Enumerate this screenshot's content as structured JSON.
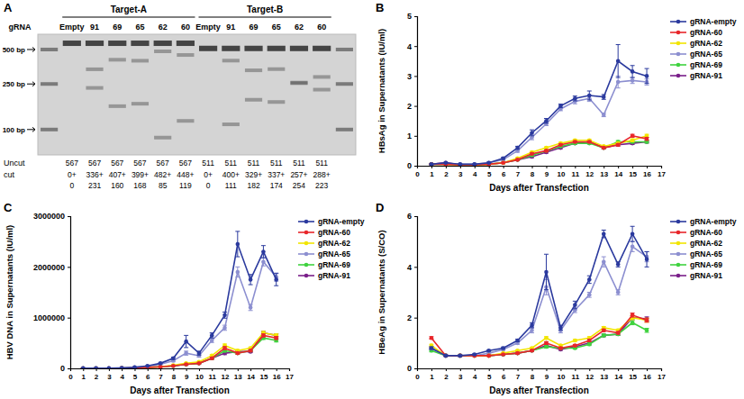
{
  "chart_data": [
    {
      "type": "gel",
      "title": "A",
      "lane_title": "gRNA",
      "row_labels": [
        "Uncut",
        "cut"
      ],
      "log": "y",
      "ylim": [
        60,
        680
      ],
      "yticks": [
        {
          "value": 500,
          "label": "500 bp"
        },
        {
          "value": 250,
          "label": "250 bp"
        },
        {
          "value": 100,
          "label": "100 bp"
        }
      ],
      "targets": [
        {
          "name": "Target-A",
          "lanes": [
            "Empty",
            "91",
            "69",
            "65",
            "62",
            "60"
          ],
          "uncut": [
            567,
            567,
            567,
            567,
            567,
            567
          ],
          "cut_a": [
            0,
            336,
            407,
            399,
            482,
            448
          ],
          "cut_a_labels": [
            "0+",
            "336+",
            "407+",
            "399+",
            "482+",
            "448+"
          ],
          "cut_b": [
            0,
            231,
            160,
            168,
            85,
            119
          ]
        },
        {
          "name": "Target-B",
          "lanes": [
            "Empty",
            "91",
            "69",
            "65",
            "62",
            "60"
          ],
          "uncut": [
            511,
            511,
            511,
            511,
            511,
            511
          ],
          "cut_a": [
            0,
            400,
            329,
            337,
            257,
            288
          ],
          "cut_a_labels": [
            "0+",
            "400+",
            "329+",
            "337+",
            "257+",
            "288+"
          ],
          "cut_b": [
            0,
            111,
            182,
            174,
            254,
            223
          ]
        }
      ]
    },
    {
      "type": "line",
      "title": "B",
      "x_label": "Days after Transfection",
      "y_label": "HBsAg in Supernatants (IU/ml)",
      "x": [
        1,
        2,
        3,
        4,
        5,
        6,
        7,
        8,
        9,
        10,
        11,
        12,
        13,
        14,
        15,
        16
      ],
      "xlim": [
        0,
        17
      ],
      "xticks": [
        0,
        1,
        2,
        3,
        4,
        5,
        6,
        7,
        8,
        9,
        10,
        11,
        12,
        13,
        14,
        15,
        16,
        17
      ],
      "ylim": [
        0,
        5
      ],
      "yticks": [
        0,
        1,
        2,
        3,
        4,
        5
      ],
      "legend": "right",
      "series": [
        {
          "name": "gRNA-empty",
          "color": "#2b3a9e",
          "marker": "circle",
          "values": [
            0.05,
            0.1,
            0.05,
            0.05,
            0.1,
            0.25,
            0.6,
            1.1,
            1.5,
            2.0,
            2.25,
            2.35,
            2.3,
            3.5,
            3.15,
            3.0
          ],
          "errors": [
            0.02,
            0.02,
            0.01,
            0.01,
            0.02,
            0.03,
            0.05,
            0.1,
            0.08,
            0.06,
            0.08,
            0.15,
            0.08,
            0.55,
            0.2,
            0.25
          ]
        },
        {
          "name": "gRNA-60",
          "color": "#e8262a",
          "marker": "circle",
          "values": [
            0.05,
            0.05,
            0.03,
            0.03,
            0.05,
            0.1,
            0.2,
            0.4,
            0.5,
            0.7,
            0.8,
            0.8,
            0.6,
            0.7,
            1.0,
            0.9
          ],
          "errors": [
            0,
            0,
            0,
            0,
            0,
            0,
            0.02,
            0.03,
            0.03,
            0.03,
            0.03,
            0.03,
            0.03,
            0.04,
            0.05,
            0.05
          ]
        },
        {
          "name": "gRNA-62",
          "color": "#f2e500",
          "marker": "circle",
          "values": [
            0.05,
            0.05,
            0.03,
            0.03,
            0.05,
            0.1,
            0.25,
            0.45,
            0.6,
            0.75,
            0.85,
            0.85,
            0.65,
            0.75,
            0.85,
            1.0
          ],
          "errors": [
            0,
            0,
            0,
            0,
            0,
            0,
            0.02,
            0.03,
            0.03,
            0.03,
            0.03,
            0.03,
            0.03,
            0.04,
            0.05,
            0.05
          ]
        },
        {
          "name": "gRNA-65",
          "color": "#8c8fd0",
          "marker": "circle",
          "values": [
            0.05,
            0.05,
            0.05,
            0.05,
            0.1,
            0.2,
            0.5,
            0.95,
            1.4,
            1.9,
            2.15,
            2.25,
            1.7,
            2.8,
            2.85,
            2.8
          ],
          "errors": [
            0.01,
            0.01,
            0.01,
            0.01,
            0.02,
            0.03,
            0.05,
            0.08,
            0.06,
            0.06,
            0.08,
            0.1,
            0.06,
            0.2,
            0.1,
            0.1
          ]
        },
        {
          "name": "gRNA-69",
          "color": "#3fd23f",
          "marker": "circle",
          "values": [
            0.05,
            0.05,
            0.03,
            0.03,
            0.05,
            0.1,
            0.2,
            0.35,
            0.5,
            0.65,
            0.75,
            0.75,
            0.6,
            0.8,
            0.8,
            0.8
          ],
          "errors": [
            0,
            0,
            0,
            0,
            0,
            0,
            0.02,
            0.03,
            0.03,
            0.03,
            0.03,
            0.03,
            0.03,
            0.04,
            0.04,
            0.04
          ]
        },
        {
          "name": "gRNA-91",
          "color": "#7a1f8a",
          "marker": "circle",
          "values": [
            0.05,
            0.1,
            0.03,
            0.03,
            0.05,
            0.1,
            0.2,
            0.3,
            0.45,
            0.6,
            0.75,
            0.8,
            0.6,
            0.7,
            0.75,
            0.8
          ],
          "errors": [
            0,
            0,
            0,
            0,
            0,
            0,
            0.02,
            0.03,
            0.03,
            0.03,
            0.03,
            0.03,
            0.03,
            0.04,
            0.04,
            0.04
          ]
        }
      ]
    },
    {
      "type": "line",
      "title": "C",
      "x_label": "Days after Transfection",
      "y_label": "HBV DNA in Supernatants (IU/ml)",
      "x": [
        1,
        2,
        3,
        4,
        5,
        6,
        7,
        8,
        9,
        10,
        11,
        12,
        13,
        14,
        15,
        16
      ],
      "xlim": [
        0,
        17
      ],
      "xticks": [
        0,
        1,
        2,
        3,
        4,
        5,
        6,
        7,
        8,
        9,
        10,
        11,
        12,
        13,
        14,
        15,
        16,
        17
      ],
      "ylim": [
        0,
        3000000
      ],
      "yticks": [
        0,
        1000000,
        2000000,
        3000000
      ],
      "legend": "right",
      "series": [
        {
          "name": "gRNA-empty",
          "color": "#2b3a9e",
          "marker": "circle",
          "values": [
            5000,
            5000,
            5000,
            10000,
            20000,
            50000,
            100000,
            200000,
            530000,
            300000,
            650000,
            1050000,
            2450000,
            1750000,
            2300000,
            1750000
          ],
          "errors": [
            0,
            0,
            0,
            0,
            0,
            0,
            10000,
            20000,
            120000,
            40000,
            50000,
            60000,
            250000,
            100000,
            120000,
            120000
          ]
        },
        {
          "name": "gRNA-60",
          "color": "#e8262a",
          "marker": "circle",
          "values": [
            0,
            0,
            0,
            5000,
            10000,
            20000,
            30000,
            50000,
            80000,
            100000,
            200000,
            400000,
            300000,
            350000,
            650000,
            600000
          ],
          "errors": [
            0,
            0,
            0,
            0,
            0,
            0,
            0,
            0,
            10000,
            10000,
            20000,
            30000,
            20000,
            20000,
            30000,
            30000
          ]
        },
        {
          "name": "gRNA-62",
          "color": "#f2e500",
          "marker": "circle",
          "values": [
            0,
            0,
            0,
            5000,
            10000,
            20000,
            30000,
            60000,
            100000,
            130000,
            250000,
            450000,
            350000,
            400000,
            700000,
            650000
          ],
          "errors": [
            0,
            0,
            0,
            0,
            0,
            0,
            0,
            0,
            10000,
            10000,
            20000,
            30000,
            20000,
            20000,
            30000,
            30000
          ]
        },
        {
          "name": "gRNA-65",
          "color": "#8c8fd0",
          "marker": "circle",
          "values": [
            5000,
            5000,
            5000,
            10000,
            20000,
            40000,
            80000,
            150000,
            300000,
            250000,
            550000,
            800000,
            1900000,
            1200000,
            2100000,
            1800000
          ],
          "errors": [
            0,
            0,
            0,
            0,
            0,
            0,
            10000,
            20000,
            40000,
            30000,
            40000,
            50000,
            100000,
            60000,
            80000,
            80000
          ]
        },
        {
          "name": "gRNA-69",
          "color": "#3fd23f",
          "marker": "circle",
          "values": [
            0,
            0,
            0,
            5000,
            10000,
            20000,
            30000,
            50000,
            80000,
            100000,
            200000,
            350000,
            300000,
            350000,
            600000,
            550000
          ],
          "errors": [
            0,
            0,
            0,
            0,
            0,
            0,
            0,
            0,
            10000,
            10000,
            20000,
            30000,
            20000,
            20000,
            30000,
            30000
          ]
        },
        {
          "name": "gRNA-91",
          "color": "#7a1f8a",
          "marker": "circle",
          "values": [
            0,
            0,
            0,
            5000,
            10000,
            20000,
            30000,
            50000,
            80000,
            100000,
            200000,
            300000,
            330000,
            330000,
            700000,
            650000
          ],
          "errors": [
            0,
            0,
            0,
            0,
            0,
            0,
            0,
            0,
            10000,
            10000,
            20000,
            30000,
            20000,
            20000,
            30000,
            30000
          ]
        }
      ]
    },
    {
      "type": "line",
      "title": "D",
      "x_label": "Days after Transfection",
      "y_label": "HBeAg in Supernatants (S/CO)",
      "x": [
        1,
        2,
        3,
        4,
        5,
        6,
        7,
        8,
        9,
        10,
        11,
        12,
        13,
        14,
        15,
        16
      ],
      "xlim": [
        0,
        17
      ],
      "xticks": [
        0,
        1,
        2,
        3,
        4,
        5,
        6,
        7,
        8,
        9,
        10,
        11,
        12,
        13,
        14,
        15,
        16,
        17
      ],
      "ylim": [
        0,
        6
      ],
      "yticks": [
        0,
        2,
        4,
        6
      ],
      "legend": "right",
      "series": [
        {
          "name": "gRNA-empty",
          "color": "#2b3a9e",
          "marker": "circle",
          "values": [
            0.8,
            0.5,
            0.5,
            0.55,
            0.7,
            0.8,
            1.1,
            1.7,
            3.8,
            1.6,
            2.5,
            3.5,
            5.3,
            4.1,
            5.3,
            4.3
          ],
          "errors": [
            0.05,
            0.03,
            0.03,
            0.03,
            0.03,
            0.04,
            0.05,
            0.1,
            0.7,
            0.1,
            0.15,
            0.15,
            0.15,
            0.1,
            0.3,
            0.3
          ]
        },
        {
          "name": "gRNA-60",
          "color": "#e8262a",
          "marker": "circle",
          "values": [
            1.2,
            0.5,
            0.5,
            0.5,
            0.5,
            0.55,
            0.6,
            0.7,
            1.0,
            0.8,
            0.9,
            1.1,
            1.5,
            1.4,
            2.1,
            1.9
          ],
          "errors": [
            0.05,
            0.02,
            0.02,
            0.02,
            0.02,
            0.02,
            0.03,
            0.03,
            0.05,
            0.04,
            0.04,
            0.05,
            0.05,
            0.05,
            0.08,
            0.08
          ]
        },
        {
          "name": "gRNA-62",
          "color": "#f2e500",
          "marker": "circle",
          "values": [
            0.9,
            0.5,
            0.5,
            0.5,
            0.5,
            0.6,
            0.7,
            0.8,
            1.2,
            0.9,
            1.1,
            1.2,
            1.6,
            1.5,
            2.0,
            1.9
          ],
          "errors": [
            0.05,
            0.02,
            0.02,
            0.02,
            0.02,
            0.02,
            0.03,
            0.03,
            0.05,
            0.04,
            0.04,
            0.05,
            0.05,
            0.05,
            0.08,
            0.08
          ]
        },
        {
          "name": "gRNA-65",
          "color": "#8c8fd0",
          "marker": "circle",
          "values": [
            0.8,
            0.5,
            0.5,
            0.5,
            0.6,
            0.75,
            1.0,
            1.5,
            3.2,
            1.5,
            2.3,
            2.9,
            4.2,
            3.0,
            4.8,
            4.4
          ],
          "errors": [
            0.05,
            0.03,
            0.03,
            0.03,
            0.03,
            0.04,
            0.05,
            0.1,
            0.3,
            0.1,
            0.1,
            0.1,
            0.2,
            0.1,
            0.2,
            0.2
          ]
        },
        {
          "name": "gRNA-69",
          "color": "#3fd23f",
          "marker": "circle",
          "values": [
            0.7,
            0.5,
            0.5,
            0.5,
            0.5,
            0.55,
            0.6,
            0.7,
            0.85,
            0.8,
            0.8,
            0.95,
            1.3,
            1.35,
            1.8,
            1.5
          ],
          "errors": [
            0.05,
            0.02,
            0.02,
            0.02,
            0.02,
            0.02,
            0.03,
            0.03,
            0.05,
            0.04,
            0.04,
            0.05,
            0.05,
            0.05,
            0.08,
            0.08
          ]
        },
        {
          "name": "gRNA-91",
          "color": "#7a1f8a",
          "marker": "circle",
          "values": [
            0.8,
            0.5,
            0.5,
            0.5,
            0.5,
            0.55,
            0.6,
            0.7,
            0.9,
            0.75,
            0.85,
            1.0,
            1.3,
            1.35,
            2.0,
            1.95
          ],
          "errors": [
            0.05,
            0.02,
            0.02,
            0.02,
            0.02,
            0.02,
            0.03,
            0.03,
            0.05,
            0.04,
            0.04,
            0.05,
            0.05,
            0.05,
            0.08,
            0.08
          ]
        }
      ]
    }
  ]
}
